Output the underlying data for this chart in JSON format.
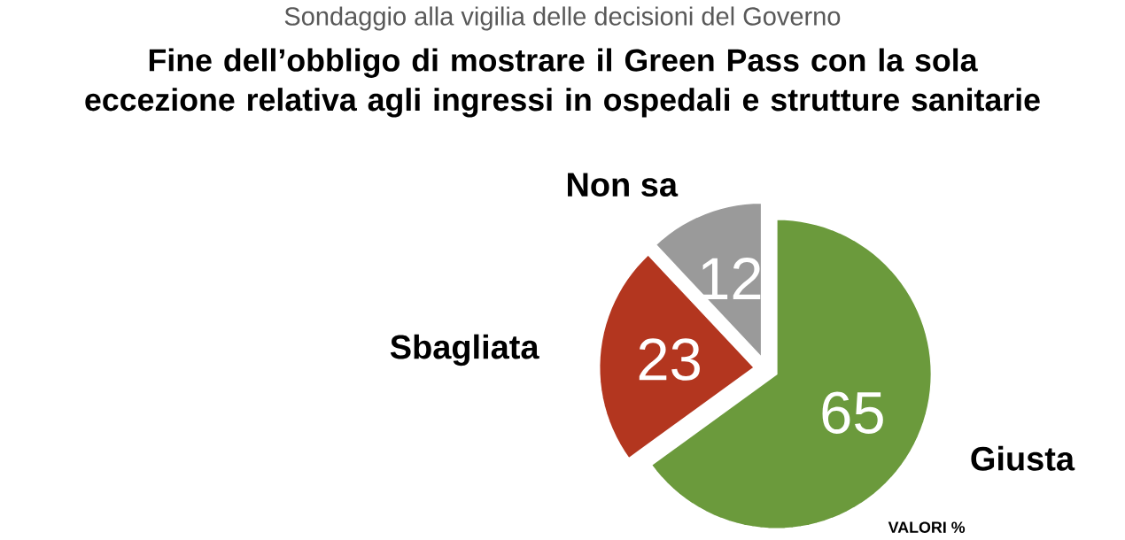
{
  "chart_data": {
    "type": "pie",
    "subtitle": "Sondaggio alla vigilia delle decisioni del Governo",
    "title": "Fine dell’obbligo di mostrare il Green Pass con la sola eccezione relativa agli ingressi in ospedali e strutture sanitarie",
    "categories": [
      "Giusta",
      "Sbagliata",
      "Non sa"
    ],
    "values": [
      65,
      23,
      12
    ],
    "colors": [
      "#6b9a3c",
      "#b3361f",
      "#9a9a9a"
    ],
    "data_labels": true,
    "annotations": [
      "VALORI %"
    ]
  }
}
